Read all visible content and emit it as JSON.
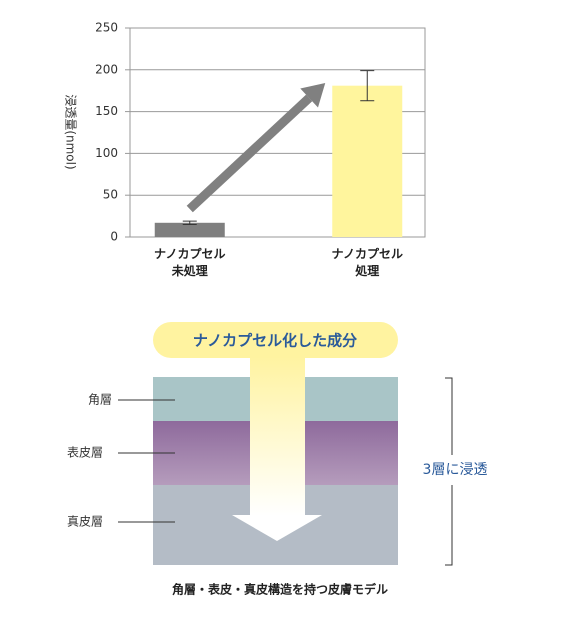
{
  "chart_data": {
    "type": "bar",
    "y_label": "浸透量(nmol)",
    "categories": [
      "ナノカプセル\n未処理",
      "ナノカプセル\n処理"
    ],
    "values": [
      17,
      181
    ],
    "errors": [
      2,
      18
    ],
    "colors": [
      "#7f7f7f",
      "#fff59d"
    ],
    "ylim": [
      0,
      250
    ],
    "yticks": [
      0,
      50,
      100,
      150,
      200,
      250
    ],
    "grid": true
  },
  "diagram": {
    "banner": "ナノカプセル化した成分",
    "layers": [
      "角層",
      "表皮層",
      "真皮層"
    ],
    "result": "3層に浸透",
    "caption": "角層・表皮・真皮構造を持つ皮膚モデル"
  }
}
